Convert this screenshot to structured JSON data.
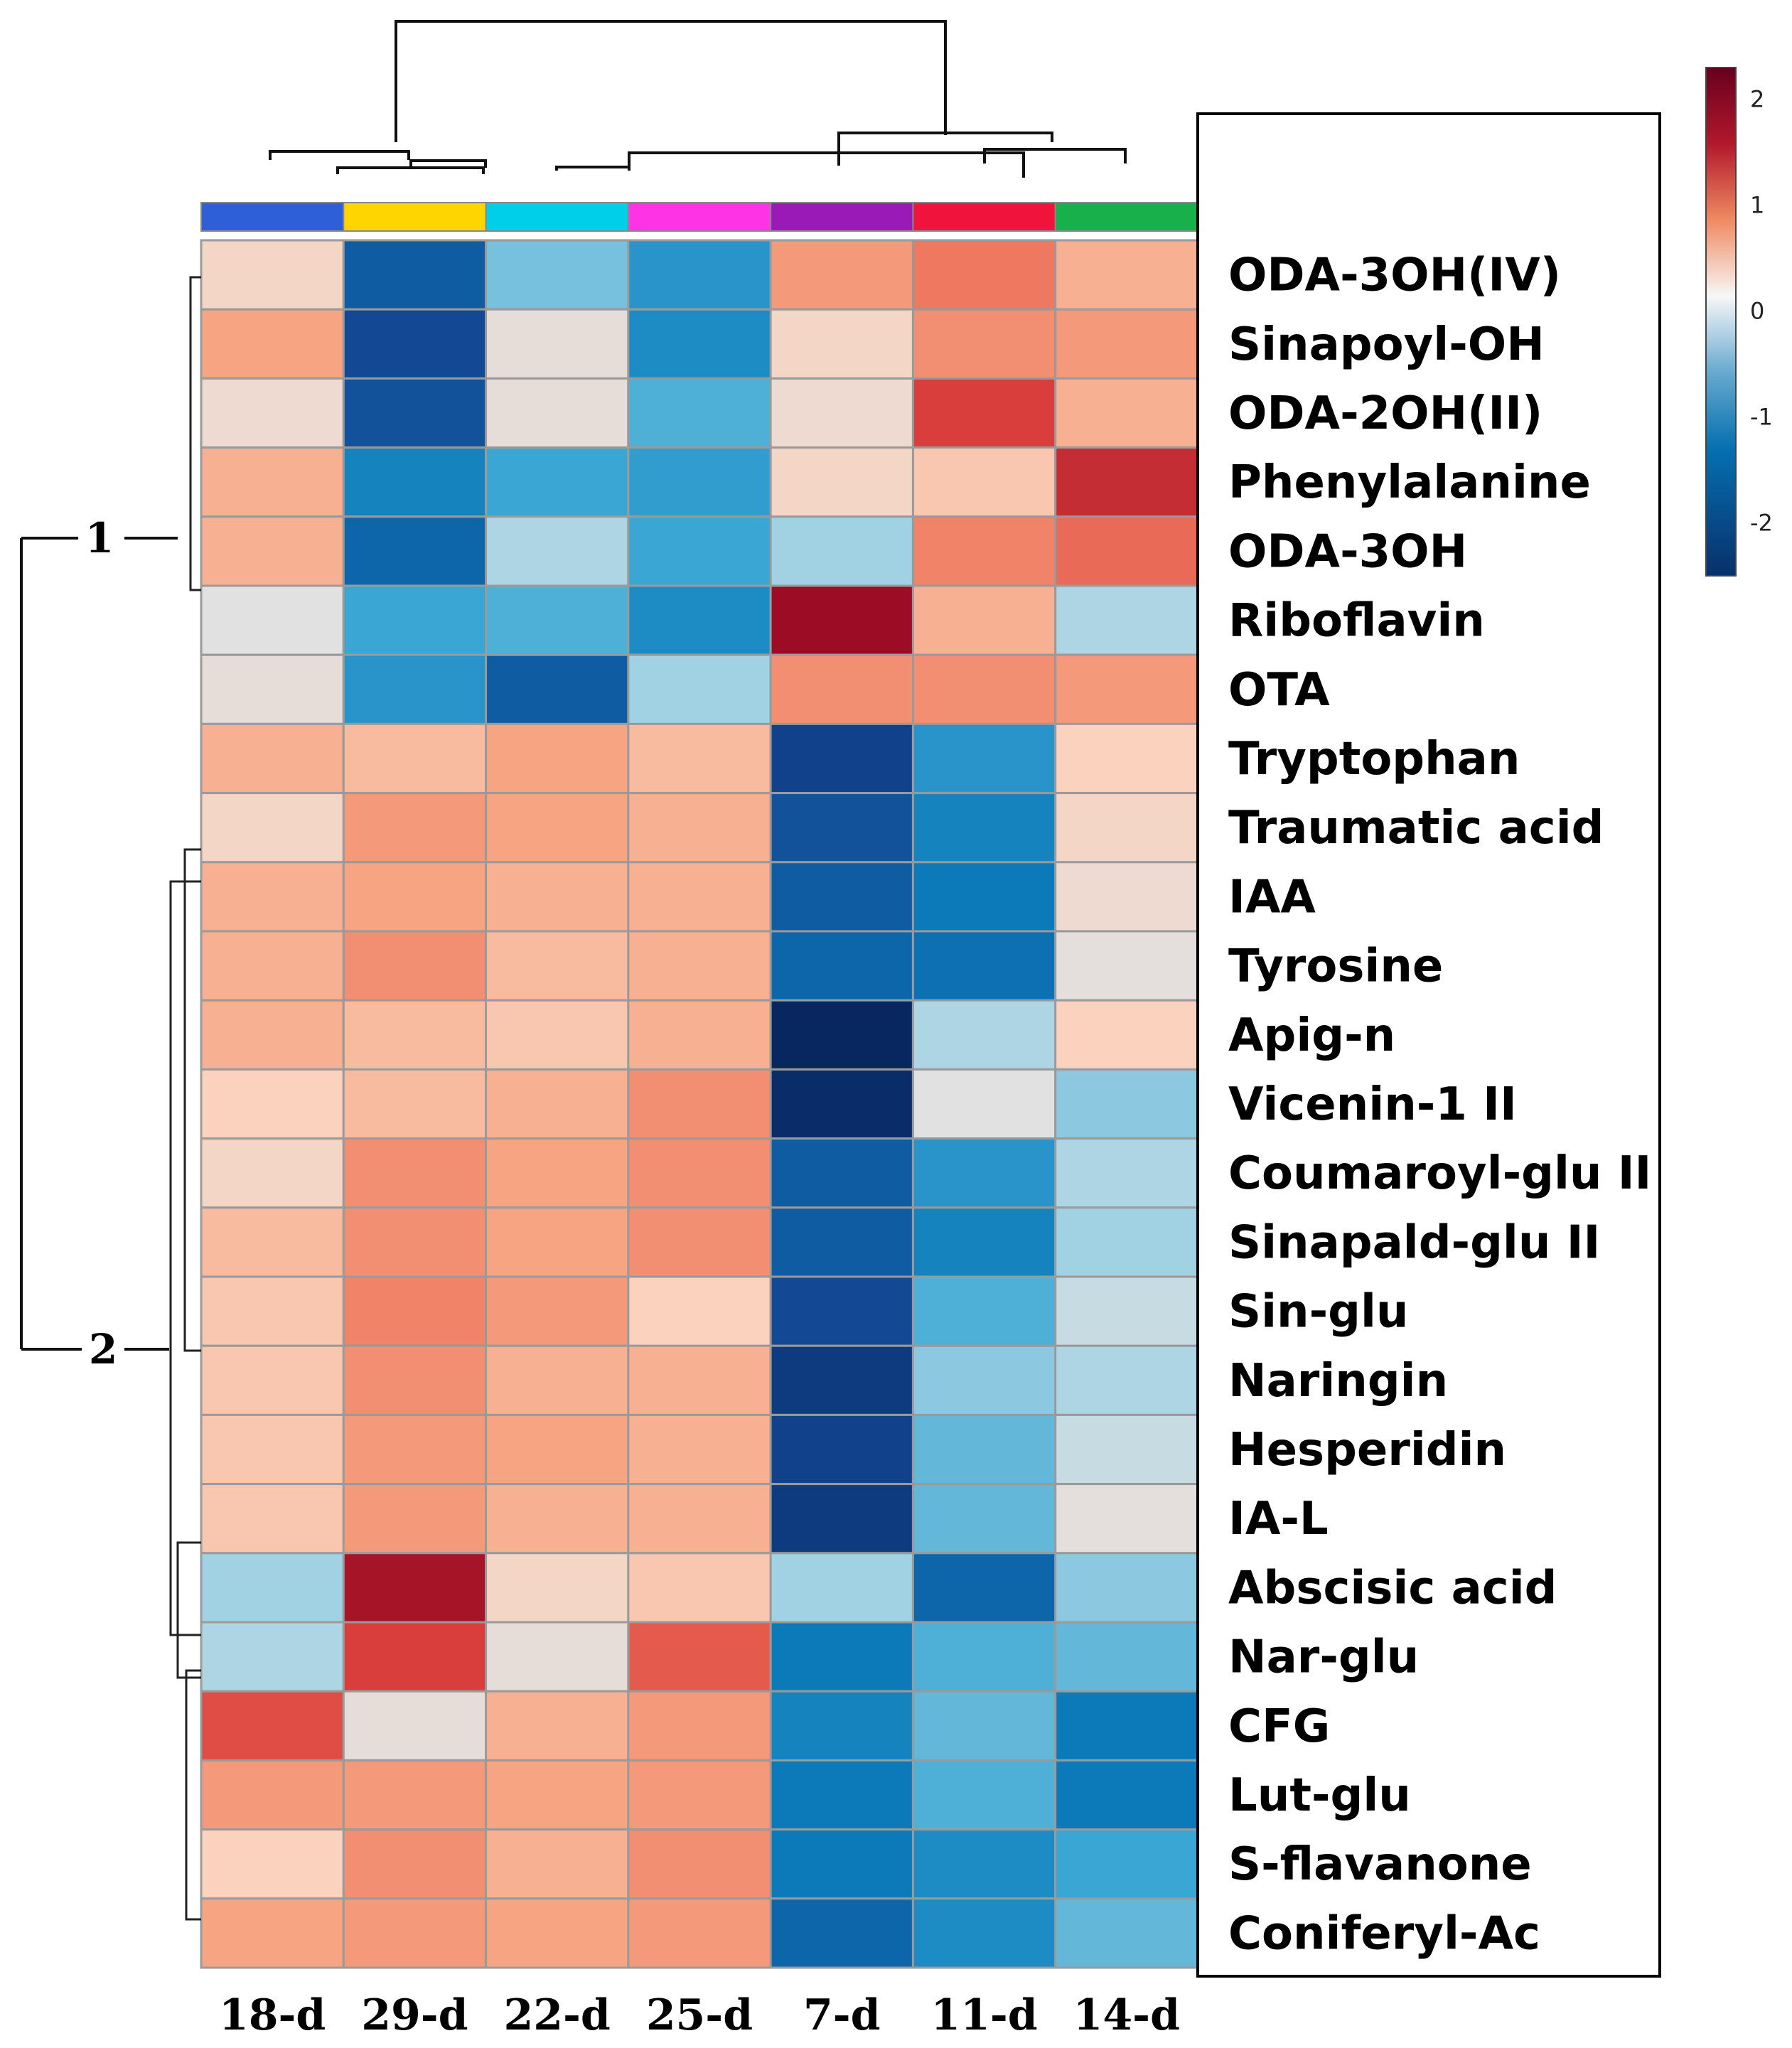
{
  "chart_data": {
    "type": "heatmap",
    "title": "",
    "columns": [
      "18-d",
      "29-d",
      "22-d",
      "25-d",
      "7-d",
      "11-d",
      "14-d"
    ],
    "column_colors": [
      "#2f5fd8",
      "#ffd500",
      "#00cfea",
      "#ff33e6",
      "#9a1ab8",
      "#f0143c",
      "#18b04a"
    ],
    "rows": [
      "ODA-3OH(IV)",
      "Sinapoyl-OH",
      "ODA-2OH(II)",
      "Phenylalanine",
      "ODA-3OH",
      "Riboflavin",
      "OTA",
      "Tryptophan",
      "Traumatic acid",
      "IAA",
      "Tyrosine",
      "Apig-n",
      "Vicenin-1 II",
      "Coumaroyl-glu II",
      "Sinapald-glu II",
      "Sin-glu",
      "Naringin",
      "Hesperidin",
      "IA-L",
      "Abscisic acid",
      "Nar-glu",
      "CFG",
      "Lut-glu",
      "S-flavanone",
      "Coniferyl-Ac"
    ],
    "values": [
      [
        0.3,
        -1.8,
        -0.7,
        -1.2,
        0.9,
        1.2,
        0.7
      ],
      [
        0.8,
        -2.0,
        0.1,
        -1.3,
        0.3,
        1.0,
        0.9
      ],
      [
        0.2,
        -1.9,
        0.1,
        -0.9,
        0.2,
        1.6,
        0.7
      ],
      [
        0.7,
        -1.4,
        -1.0,
        -1.1,
        0.3,
        0.5,
        1.8
      ],
      [
        0.7,
        -1.7,
        -0.4,
        -1.0,
        -0.5,
        1.1,
        1.3
      ],
      [
        0.0,
        -1.0,
        -0.9,
        -1.3,
        2.2,
        0.7,
        -0.4
      ],
      [
        0.1,
        -1.2,
        -1.8,
        -0.5,
        1.0,
        1.0,
        0.9
      ],
      [
        0.7,
        0.6,
        0.8,
        0.6,
        -2.1,
        -1.2,
        0.4
      ],
      [
        0.3,
        0.9,
        0.8,
        0.7,
        -1.9,
        -1.4,
        0.3
      ],
      [
        0.7,
        0.8,
        0.7,
        0.7,
        -1.8,
        -1.5,
        0.2
      ],
      [
        0.7,
        1.0,
        0.6,
        0.7,
        -1.7,
        -1.6,
        0.05
      ],
      [
        0.7,
        0.6,
        0.5,
        0.7,
        -2.5,
        -0.4,
        0.4
      ],
      [
        0.4,
        0.6,
        0.7,
        1.0,
        -2.4,
        0.0,
        -0.6
      ],
      [
        0.3,
        1.0,
        0.8,
        1.0,
        -1.8,
        -1.2,
        -0.4
      ],
      [
        0.6,
        1.0,
        0.8,
        1.0,
        -1.8,
        -1.4,
        -0.5
      ],
      [
        0.5,
        1.1,
        0.9,
        0.4,
        -2.0,
        -0.9,
        -0.2
      ],
      [
        0.5,
        1.0,
        0.7,
        0.7,
        -2.2,
        -0.6,
        -0.4
      ],
      [
        0.5,
        0.9,
        0.8,
        0.7,
        -2.1,
        -0.8,
        -0.2
      ],
      [
        0.5,
        0.9,
        0.7,
        0.7,
        -2.2,
        -0.8,
        0.05
      ],
      [
        -0.5,
        2.1,
        0.3,
        0.5,
        -0.5,
        -1.7,
        -0.6
      ],
      [
        -0.4,
        1.6,
        0.1,
        1.4,
        -1.5,
        -0.9,
        -0.8
      ],
      [
        1.5,
        0.1,
        0.7,
        0.9,
        -1.4,
        -0.8,
        -1.5
      ],
      [
        0.9,
        0.9,
        0.8,
        0.9,
        -1.5,
        -0.9,
        -1.5
      ],
      [
        0.4,
        1.0,
        0.7,
        1.0,
        -1.5,
        -1.3,
        -1.0
      ],
      [
        0.8,
        0.9,
        0.8,
        0.9,
        -1.7,
        -1.3,
        -0.8
      ]
    ],
    "color_scale": {
      "range": [
        -2.5,
        2.3
      ],
      "ticks": [
        2,
        1,
        0,
        -1,
        -2
      ],
      "tick_labels": [
        "2",
        "1",
        "0",
        "-1",
        "-2"
      ]
    },
    "row_clusters": [
      {
        "label": "1",
        "rows": [
          0,
          6
        ]
      },
      {
        "label": "2",
        "rows": [
          7,
          24
        ]
      }
    ]
  }
}
